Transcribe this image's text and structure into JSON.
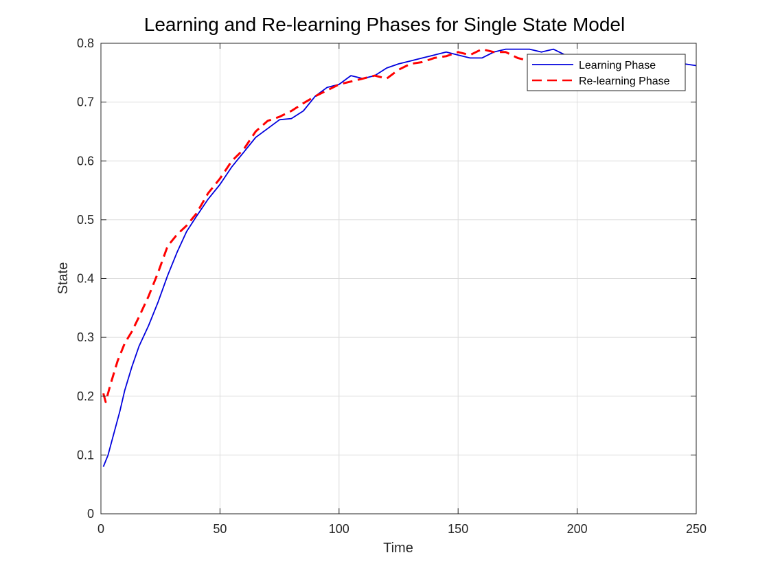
{
  "chart_data": {
    "type": "line",
    "title": "Learning and Re-learning Phases for Single State Model",
    "xlabel": "Time",
    "ylabel": "State",
    "xlim": [
      0,
      250
    ],
    "ylim": [
      0,
      0.8
    ],
    "xticks": [
      "0",
      "50",
      "100",
      "150",
      "200",
      "250"
    ],
    "yticks": [
      "0",
      "0.1",
      "0.2",
      "0.3",
      "0.4",
      "0.5",
      "0.6",
      "0.7",
      "0.8"
    ],
    "grid": true,
    "legend_position": "top-right",
    "series": [
      {
        "name": "Learning Phase",
        "color": "#0000dd",
        "style": "solid",
        "x": [
          1,
          3,
          5,
          8,
          10,
          13,
          16,
          20,
          24,
          28,
          32,
          36,
          40,
          45,
          50,
          55,
          60,
          65,
          70,
          75,
          80,
          85,
          90,
          95,
          100,
          105,
          110,
          115,
          120,
          125,
          130,
          135,
          140,
          145,
          150,
          155,
          160,
          165,
          170,
          175,
          180,
          185,
          190,
          195,
          200,
          210,
          220,
          230,
          240,
          245,
          250
        ],
        "y": [
          0.08,
          0.1,
          0.13,
          0.175,
          0.21,
          0.25,
          0.285,
          0.32,
          0.36,
          0.405,
          0.445,
          0.48,
          0.505,
          0.535,
          0.56,
          0.59,
          0.615,
          0.64,
          0.655,
          0.67,
          0.672,
          0.685,
          0.71,
          0.725,
          0.73,
          0.745,
          0.74,
          0.745,
          0.758,
          0.765,
          0.77,
          0.775,
          0.78,
          0.785,
          0.78,
          0.775,
          0.775,
          0.785,
          0.79,
          0.79,
          0.79,
          0.785,
          0.79,
          0.78,
          0.77,
          0.77,
          0.765,
          0.76,
          0.755,
          0.765,
          0.762
        ]
      },
      {
        "name": "Re-learning Phase",
        "color": "#ff0000",
        "style": "dashed",
        "x": [
          1,
          2,
          4,
          7,
          10,
          13,
          16,
          20,
          24,
          28,
          32,
          36,
          40,
          45,
          50,
          55,
          60,
          65,
          70,
          75,
          80,
          85,
          90,
          95,
          100,
          105,
          110,
          115,
          120,
          125,
          130,
          135,
          140,
          145,
          150,
          155,
          160,
          165,
          170,
          175,
          180,
          185,
          190,
          195,
          200
        ],
        "y": [
          0.205,
          0.19,
          0.22,
          0.26,
          0.29,
          0.31,
          0.335,
          0.37,
          0.41,
          0.455,
          0.475,
          0.49,
          0.51,
          0.545,
          0.57,
          0.6,
          0.62,
          0.65,
          0.668,
          0.675,
          0.685,
          0.698,
          0.71,
          0.72,
          0.73,
          0.735,
          0.74,
          0.745,
          0.74,
          0.755,
          0.765,
          0.768,
          0.775,
          0.778,
          0.785,
          0.78,
          0.79,
          0.785,
          0.785,
          0.775,
          0.77,
          0.768,
          0.772,
          0.77,
          0.77
        ]
      }
    ]
  }
}
